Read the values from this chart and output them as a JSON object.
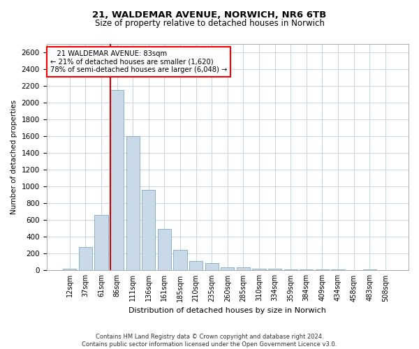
{
  "title1": "21, WALDEMAR AVENUE, NORWICH, NR6 6TB",
  "title2": "Size of property relative to detached houses in Norwich",
  "xlabel": "Distribution of detached houses by size in Norwich",
  "ylabel": "Number of detached properties",
  "categories": [
    "12sqm",
    "37sqm",
    "61sqm",
    "86sqm",
    "111sqm",
    "136sqm",
    "161sqm",
    "185sqm",
    "210sqm",
    "235sqm",
    "260sqm",
    "285sqm",
    "310sqm",
    "334sqm",
    "359sqm",
    "384sqm",
    "409sqm",
    "434sqm",
    "458sqm",
    "483sqm",
    "508sqm"
  ],
  "values": [
    20,
    280,
    660,
    2150,
    1600,
    960,
    490,
    245,
    115,
    90,
    35,
    38,
    20,
    22,
    10,
    12,
    15,
    8,
    5,
    10,
    5
  ],
  "bar_color": "#c9d9e8",
  "bar_edge_color": "#7aaac8",
  "marker_color": "#cc0000",
  "annotation_line1": "   21 WALDEMAR AVENUE: 83sqm   ",
  "annotation_line2": "← 21% of detached houses are smaller (1,620)",
  "annotation_line3": "78% of semi-detached houses are larger (6,048) →",
  "footer1": "Contains HM Land Registry data © Crown copyright and database right 2024.",
  "footer2": "Contains public sector information licensed under the Open Government Licence v3.0.",
  "ylim": [
    0,
    2700
  ],
  "yticks": [
    0,
    200,
    400,
    600,
    800,
    1000,
    1200,
    1400,
    1600,
    1800,
    2000,
    2200,
    2400,
    2600
  ],
  "bg_color": "#ffffff",
  "grid_color": "#c8d4e4"
}
